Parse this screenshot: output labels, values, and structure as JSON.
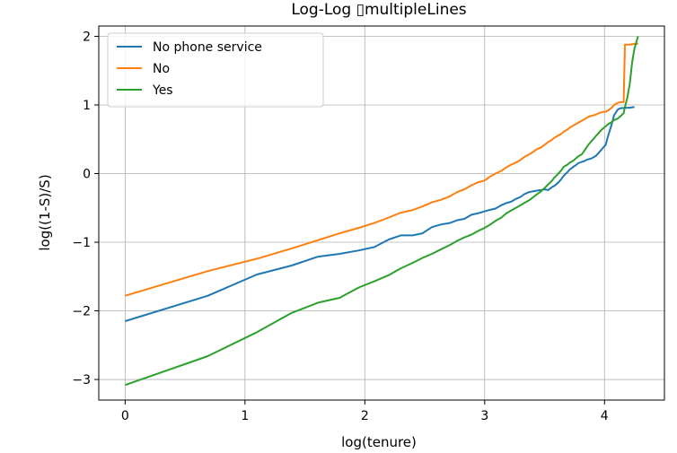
{
  "chart_data": {
    "type": "line",
    "title": "Log-Log ▯multipleLines",
    "xlabel": "log(tenure)",
    "ylabel": "log((1-S)/S)",
    "xlim": [
      -0.22,
      4.5
    ],
    "ylim": [
      -3.3,
      2.15
    ],
    "xticks": [
      0,
      1,
      2,
      3,
      4
    ],
    "yticks": [
      -3,
      -2,
      -1,
      0,
      1,
      2
    ],
    "grid": true,
    "legend_position": "top-left",
    "series": [
      {
        "name": "No phone service",
        "color": "#1f77b4",
        "points": [
          [
            0,
            -2.15
          ],
          [
            0.69,
            -1.78
          ],
          [
            1.1,
            -1.47
          ],
          [
            1.39,
            -1.34
          ],
          [
            1.61,
            -1.21
          ],
          [
            1.79,
            -1.17
          ],
          [
            1.95,
            -1.12
          ],
          [
            2.08,
            -1.07
          ],
          [
            2.2,
            -0.96
          ],
          [
            2.3,
            -0.9
          ],
          [
            2.4,
            -0.9
          ],
          [
            2.48,
            -0.87
          ],
          [
            2.56,
            -0.78
          ],
          [
            2.64,
            -0.74
          ],
          [
            2.71,
            -0.72
          ],
          [
            2.77,
            -0.68
          ],
          [
            2.83,
            -0.66
          ],
          [
            2.89,
            -0.6
          ],
          [
            2.94,
            -0.58
          ],
          [
            3.0,
            -0.55
          ],
          [
            3.04,
            -0.53
          ],
          [
            3.09,
            -0.51
          ],
          [
            3.14,
            -0.46
          ],
          [
            3.18,
            -0.43
          ],
          [
            3.22,
            -0.41
          ],
          [
            3.26,
            -0.37
          ],
          [
            3.3,
            -0.34
          ],
          [
            3.33,
            -0.3
          ],
          [
            3.37,
            -0.27
          ],
          [
            3.4,
            -0.26
          ],
          [
            3.43,
            -0.25
          ],
          [
            3.47,
            -0.24
          ],
          [
            3.5,
            -0.23
          ],
          [
            3.53,
            -0.24
          ],
          [
            3.56,
            -0.2
          ],
          [
            3.58,
            -0.18
          ],
          [
            3.61,
            -0.14
          ],
          [
            3.64,
            -0.08
          ],
          [
            3.66,
            -0.03
          ],
          [
            3.69,
            0.02
          ],
          [
            3.71,
            0.06
          ],
          [
            3.74,
            0.1
          ],
          [
            3.76,
            0.12
          ],
          [
            3.78,
            0.15
          ],
          [
            3.81,
            0.17
          ],
          [
            3.83,
            0.18
          ],
          [
            3.85,
            0.2
          ],
          [
            3.87,
            0.21
          ],
          [
            3.89,
            0.22
          ],
          [
            3.91,
            0.24
          ],
          [
            3.93,
            0.26
          ],
          [
            3.95,
            0.3
          ],
          [
            3.97,
            0.34
          ],
          [
            3.99,
            0.38
          ],
          [
            4.01,
            0.42
          ],
          [
            4.03,
            0.55
          ],
          [
            4.06,
            0.72
          ],
          [
            4.08,
            0.85
          ],
          [
            4.11,
            0.93
          ],
          [
            4.13,
            0.95
          ],
          [
            4.17,
            0.96
          ],
          [
            4.21,
            0.96
          ],
          [
            4.25,
            0.97
          ]
        ]
      },
      {
        "name": "No",
        "color": "#ff7f0e",
        "points": [
          [
            0,
            -1.78
          ],
          [
            0.69,
            -1.42
          ],
          [
            1.1,
            -1.24
          ],
          [
            1.39,
            -1.09
          ],
          [
            1.61,
            -0.97
          ],
          [
            1.79,
            -0.87
          ],
          [
            1.95,
            -0.79
          ],
          [
            2.08,
            -0.72
          ],
          [
            2.2,
            -0.64
          ],
          [
            2.3,
            -0.57
          ],
          [
            2.4,
            -0.53
          ],
          [
            2.48,
            -0.48
          ],
          [
            2.56,
            -0.42
          ],
          [
            2.64,
            -0.38
          ],
          [
            2.71,
            -0.33
          ],
          [
            2.77,
            -0.27
          ],
          [
            2.83,
            -0.23
          ],
          [
            2.89,
            -0.17
          ],
          [
            2.94,
            -0.13
          ],
          [
            3.0,
            -0.1
          ],
          [
            3.04,
            -0.05
          ],
          [
            3.09,
            0.0
          ],
          [
            3.14,
            0.04
          ],
          [
            3.18,
            0.09
          ],
          [
            3.22,
            0.13
          ],
          [
            3.26,
            0.16
          ],
          [
            3.3,
            0.2
          ],
          [
            3.33,
            0.24
          ],
          [
            3.37,
            0.28
          ],
          [
            3.4,
            0.31
          ],
          [
            3.43,
            0.35
          ],
          [
            3.47,
            0.38
          ],
          [
            3.5,
            0.42
          ],
          [
            3.53,
            0.46
          ],
          [
            3.56,
            0.49
          ],
          [
            3.58,
            0.52
          ],
          [
            3.61,
            0.55
          ],
          [
            3.64,
            0.58
          ],
          [
            3.66,
            0.61
          ],
          [
            3.69,
            0.64
          ],
          [
            3.71,
            0.67
          ],
          [
            3.74,
            0.7
          ],
          [
            3.76,
            0.72
          ],
          [
            3.78,
            0.74
          ],
          [
            3.81,
            0.77
          ],
          [
            3.83,
            0.79
          ],
          [
            3.85,
            0.81
          ],
          [
            3.87,
            0.83
          ],
          [
            3.89,
            0.84
          ],
          [
            3.91,
            0.85
          ],
          [
            3.93,
            0.86
          ],
          [
            3.95,
            0.88
          ],
          [
            3.97,
            0.89
          ],
          [
            3.99,
            0.9
          ],
          [
            4.01,
            0.9
          ],
          [
            4.03,
            0.92
          ],
          [
            4.06,
            0.96
          ],
          [
            4.08,
            1.0
          ],
          [
            4.11,
            1.03
          ],
          [
            4.13,
            1.04
          ],
          [
            4.16,
            1.04
          ],
          [
            4.17,
            1.88
          ],
          [
            4.21,
            1.88
          ],
          [
            4.25,
            1.89
          ],
          [
            4.28,
            1.89
          ]
        ]
      },
      {
        "name": "Yes",
        "color": "#2ca02c",
        "points": [
          [
            0,
            -3.08
          ],
          [
            0.69,
            -2.66
          ],
          [
            1.1,
            -2.31
          ],
          [
            1.39,
            -2.03
          ],
          [
            1.61,
            -1.88
          ],
          [
            1.79,
            -1.81
          ],
          [
            1.95,
            -1.66
          ],
          [
            2.08,
            -1.57
          ],
          [
            2.2,
            -1.48
          ],
          [
            2.3,
            -1.38
          ],
          [
            2.4,
            -1.3
          ],
          [
            2.48,
            -1.23
          ],
          [
            2.56,
            -1.17
          ],
          [
            2.64,
            -1.1
          ],
          [
            2.71,
            -1.04
          ],
          [
            2.77,
            -0.98
          ],
          [
            2.83,
            -0.93
          ],
          [
            2.89,
            -0.89
          ],
          [
            2.94,
            -0.84
          ],
          [
            3.0,
            -0.79
          ],
          [
            3.04,
            -0.75
          ],
          [
            3.09,
            -0.69
          ],
          [
            3.14,
            -0.64
          ],
          [
            3.18,
            -0.58
          ],
          [
            3.22,
            -0.54
          ],
          [
            3.26,
            -0.5
          ],
          [
            3.3,
            -0.46
          ],
          [
            3.33,
            -0.43
          ],
          [
            3.37,
            -0.39
          ],
          [
            3.4,
            -0.35
          ],
          [
            3.43,
            -0.31
          ],
          [
            3.47,
            -0.26
          ],
          [
            3.5,
            -0.21
          ],
          [
            3.53,
            -0.16
          ],
          [
            3.56,
            -0.11
          ],
          [
            3.58,
            -0.06
          ],
          [
            3.61,
            -0.01
          ],
          [
            3.64,
            0.05
          ],
          [
            3.66,
            0.1
          ],
          [
            3.69,
            0.13
          ],
          [
            3.71,
            0.16
          ],
          [
            3.74,
            0.19
          ],
          [
            3.76,
            0.22
          ],
          [
            3.78,
            0.25
          ],
          [
            3.81,
            0.28
          ],
          [
            3.83,
            0.33
          ],
          [
            3.85,
            0.38
          ],
          [
            3.87,
            0.43
          ],
          [
            3.89,
            0.47
          ],
          [
            3.91,
            0.51
          ],
          [
            3.93,
            0.55
          ],
          [
            3.95,
            0.59
          ],
          [
            3.97,
            0.63
          ],
          [
            3.99,
            0.66
          ],
          [
            4.01,
            0.69
          ],
          [
            4.03,
            0.72
          ],
          [
            4.06,
            0.75
          ],
          [
            4.08,
            0.78
          ],
          [
            4.11,
            0.8
          ],
          [
            4.13,
            0.83
          ],
          [
            4.16,
            0.88
          ],
          [
            4.17,
            0.97
          ],
          [
            4.19,
            1.1
          ],
          [
            4.21,
            1.3
          ],
          [
            4.22,
            1.45
          ],
          [
            4.23,
            1.62
          ],
          [
            4.25,
            1.82
          ],
          [
            4.28,
            2.0
          ]
        ]
      }
    ]
  }
}
